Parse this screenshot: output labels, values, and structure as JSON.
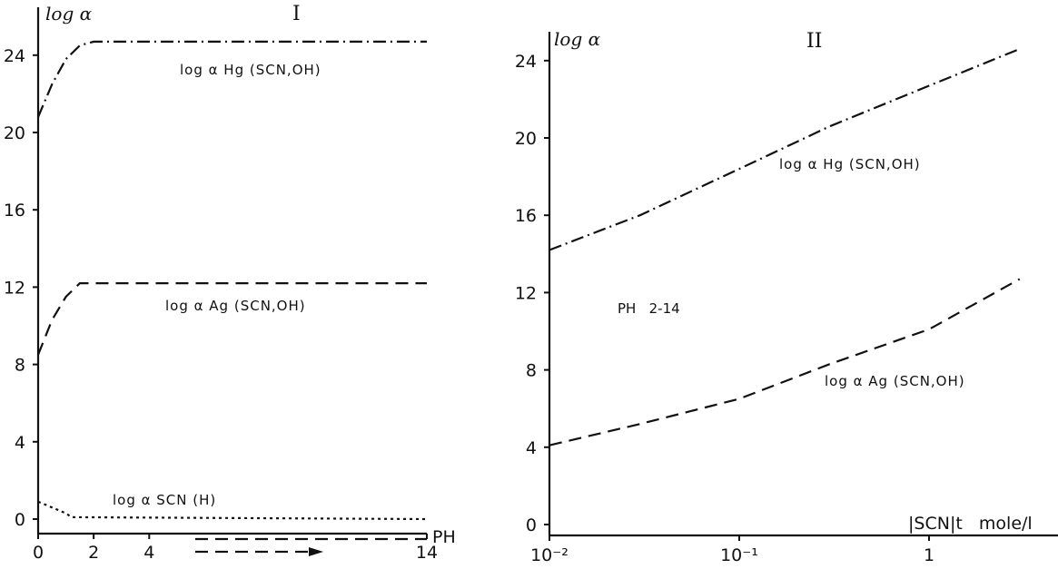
{
  "chart_data": [
    {
      "type": "line",
      "title": "I",
      "ylabel": "log α",
      "xlabel": "PH",
      "xlim": [
        0,
        14
      ],
      "ylim": [
        0,
        26
      ],
      "x_ticks": [
        "0",
        "2",
        "4",
        "14"
      ],
      "y_ticks": [
        "0",
        "4",
        "8",
        "12",
        "16",
        "20",
        "24"
      ],
      "series": [
        {
          "name": "log α Hg (SCN,OH)",
          "style": "dash-dot",
          "x": [
            0,
            0.5,
            1,
            1.5,
            2,
            14
          ],
          "y": [
            20.8,
            22.5,
            23.8,
            24.5,
            24.7,
            24.7
          ]
        },
        {
          "name": "log α Ag (SCN,OH)",
          "style": "dashed",
          "x": [
            0,
            0.5,
            1,
            1.5,
            2,
            14
          ],
          "y": [
            8.5,
            10.3,
            11.5,
            12.2,
            12.2,
            12.2
          ]
        },
        {
          "name": "log α SCN (H)",
          "style": "dotted",
          "x": [
            0,
            0.5,
            1,
            1.2,
            14
          ],
          "y": [
            0.9,
            0.6,
            0.3,
            0.1,
            0.0
          ]
        }
      ]
    },
    {
      "type": "line",
      "title": "II",
      "ylabel": "log α",
      "xlabel": "|SCN|t   mole/l",
      "xscale": "log",
      "xlim": [
        0.01,
        3
      ],
      "ylim": [
        0,
        26
      ],
      "x_ticks": [
        "10⁻²",
        "10⁻¹",
        "1"
      ],
      "y_ticks": [
        "0",
        "4",
        "8",
        "12",
        "16",
        "20",
        "24"
      ],
      "annotation": "PH   2-14",
      "series": [
        {
          "name": "log α Hg (SCN,OH)",
          "style": "dash-dot",
          "x": [
            0.01,
            0.03,
            0.1,
            0.3,
            1,
            3
          ],
          "y": [
            14.2,
            16.0,
            18.4,
            20.6,
            22.7,
            24.6
          ]
        },
        {
          "name": "log α Ag (SCN,OH)",
          "style": "dashed",
          "x": [
            0.01,
            0.03,
            0.1,
            0.3,
            1,
            3
          ],
          "y": [
            4.1,
            5.2,
            6.5,
            8.3,
            10.1,
            12.7
          ]
        }
      ]
    }
  ],
  "extra": {
    "arrow_direction": "right"
  }
}
